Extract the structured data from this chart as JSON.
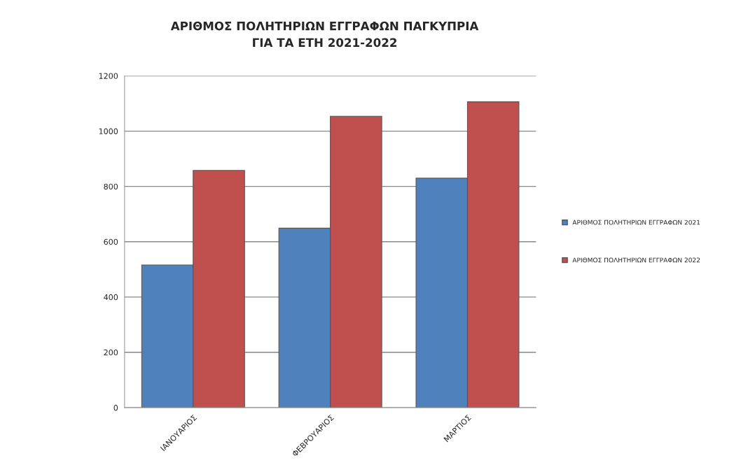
{
  "chart_data": {
    "type": "bar",
    "title": "ΑΡΙΘΜΟΣ ΠΟΛΗΤΗΡΙΩΝ ΕΓΓΡΑΦΩΝ ΠΑΓΚΥΠΡΙΑ\nΓΙΑ ΤΑ ΕΤΗ 2021-2022",
    "categories": [
      "ΙΑΝΟΥΑΡΙΟΣ",
      "ΦΕΒΡΟΥΑΡΙΟΣ",
      "ΜΑΡΤΙΟΣ"
    ],
    "series": [
      {
        "name": "ΑΡΙΘΜΟΣ ΠΟΛΗΤΗΡΙΩΝ ΕΓΓΡΑΦΩΝ 2021",
        "color": "#4f81bd",
        "values": [
          516,
          649,
          830
        ]
      },
      {
        "name": "ΑΡΙΘΜΟΣ ΠΟΛΗΤΗΡΙΩΝ ΕΓΓΡΑΦΩΝ 2022",
        "color": "#c0504d",
        "values": [
          858,
          1054,
          1106
        ]
      }
    ],
    "ylim": [
      0,
      1200
    ],
    "yticks": [
      0,
      200,
      400,
      600,
      800,
      1000,
      1200
    ],
    "grid": "y",
    "legend": "right"
  }
}
